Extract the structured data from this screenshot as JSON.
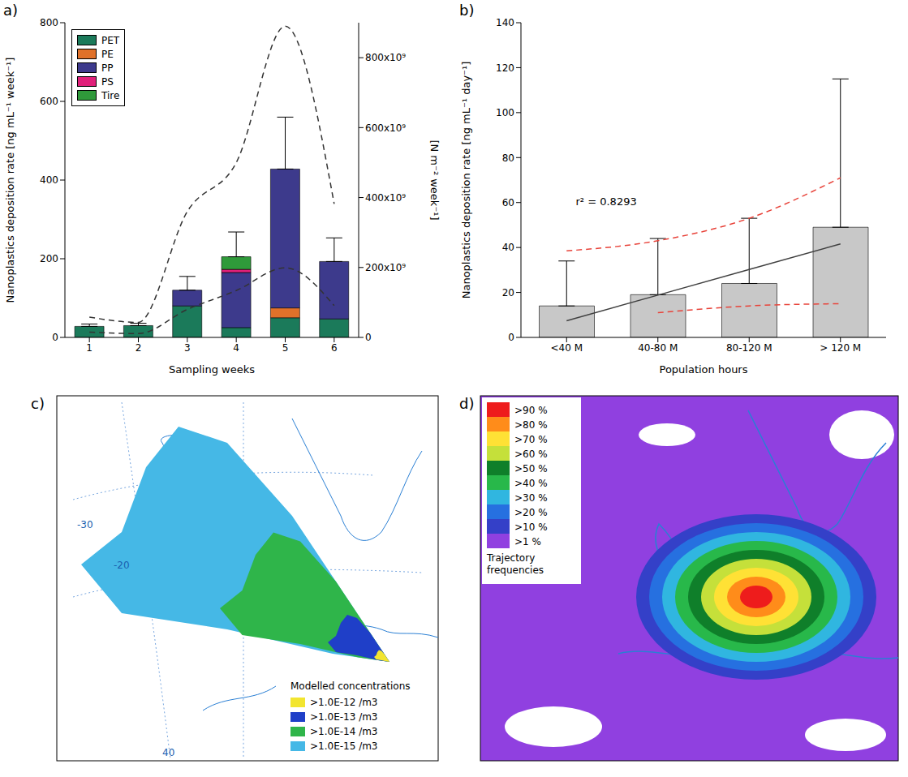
{
  "chart_data": [
    {
      "type": "bar",
      "panel": "a)",
      "stacked": true,
      "legend": "upper left",
      "categories": [
        "1",
        "2",
        "3",
        "4",
        "5",
        "6"
      ],
      "series": [
        {
          "name": "PET",
          "color": "#1b7a5a",
          "values": [
            28,
            30,
            80,
            25,
            50,
            47
          ]
        },
        {
          "name": "PE",
          "color": "#e0712a",
          "values": [
            0,
            0,
            0,
            0,
            25,
            0
          ]
        },
        {
          "name": "PP",
          "color": "#3d3a8c",
          "values": [
            0,
            0,
            40,
            140,
            353,
            146
          ]
        },
        {
          "name": "PS",
          "color": "#e0207a",
          "values": [
            0,
            0,
            0,
            8,
            0,
            0
          ]
        },
        {
          "name": "Tire",
          "color": "#2f9a3a",
          "values": [
            0,
            0,
            0,
            32,
            0,
            0
          ]
        }
      ],
      "errors": [
        6,
        6,
        35,
        63,
        132,
        60
      ],
      "lines": [
        {
          "values": [
            58000000000,
            43000000000,
            360000000000,
            500000000000,
            890000000000,
            382000000000
          ],
          "color": "#333333",
          "line_style": "dashed",
          "axis": "y2"
        },
        {
          "values": [
            15000000000,
            11000000000,
            80000000000,
            134000000000,
            199000000000,
            91000000000
          ],
          "color": "#333333",
          "line_style": "dashed",
          "axis": "y2"
        }
      ],
      "ylim": [
        0,
        800
      ],
      "yticks": [
        0,
        200,
        400,
        600,
        800
      ],
      "y2lim": [
        0,
        900000000000
      ],
      "y2ticks": [
        0,
        {
          "value": 200000000000,
          "label": "200x10⁹"
        },
        {
          "value": 400000000000,
          "label": "400x10⁹"
        },
        {
          "value": 600000000000,
          "label": "600x10⁹"
        },
        {
          "value": 800000000000,
          "label": "800x10⁹"
        }
      ],
      "ylabel": "Nanoplastics deposition rate [ng mL⁻¹ week⁻¹]",
      "y2label": "[N m⁻² week⁻¹]",
      "xlabel": "Sampling weeks"
    },
    {
      "type": "bar",
      "panel": "b)",
      "categories": [
        "<40 M",
        "40-80 M",
        "80-120 M",
        "> 120 M"
      ],
      "values": [
        14,
        19,
        24,
        49
      ],
      "color": "#c8c8c8",
      "errors": [
        20,
        25,
        29,
        66
      ],
      "lines": [
        {
          "values": [
            7.4,
            18.8,
            30.2,
            41.6
          ],
          "color": "#404040",
          "line_style": "solid"
        },
        {
          "values": [
            38.5,
            43,
            53,
            71
          ],
          "color": "#e8433a",
          "line_style": "dashed"
        },
        {
          "values": [
            null,
            11,
            14,
            15
          ],
          "color": "#e8433a",
          "line_style": "dashed"
        }
      ],
      "annotation": "r² = 0.8293",
      "ylim": [
        0,
        140
      ],
      "yticks": [
        0,
        20,
        40,
        60,
        80,
        100,
        120,
        140
      ],
      "ylabel": "Nanoplastics deposition rate [ng mL⁻¹ day⁻¹]",
      "xlabel": "Population hours"
    },
    {
      "type": "map",
      "panel": "c)",
      "legend_title": "Modelled concentrations",
      "classes": [
        {
          "label": ">1.0E-12 /m3",
          "color": "#f2e530"
        },
        {
          "label": ">1.0E-13 /m3",
          "color": "#1f3fc8"
        },
        {
          "label": ">1.0E-14 /m3",
          "color": "#2fb54a"
        },
        {
          "label": ">1.0E-15 /m3",
          "color": "#45b8e6"
        }
      ],
      "map_labels": [
        "-30",
        "-20",
        "40"
      ]
    },
    {
      "type": "map",
      "panel": "d)",
      "legend_title": "Trajectory frequencies",
      "classes": [
        {
          "label": ">90 %",
          "color": "#ee1c1c"
        },
        {
          "label": ">80 %",
          "color": "#ff8c1a"
        },
        {
          "label": ">70 %",
          "color": "#ffe135"
        },
        {
          "label": ">60 %",
          "color": "#c5e03a"
        },
        {
          "label": ">50 %",
          "color": "#0f7f2a"
        },
        {
          "label": ">40 %",
          "color": "#28b84a"
        },
        {
          "label": ">30 %",
          "color": "#30b6e0"
        },
        {
          "label": ">20 %",
          "color": "#2670e0"
        },
        {
          "label": ">10 %",
          "color": "#3440c8"
        },
        {
          "label": ">1 %",
          "color": "#9040e0"
        }
      ]
    }
  ]
}
